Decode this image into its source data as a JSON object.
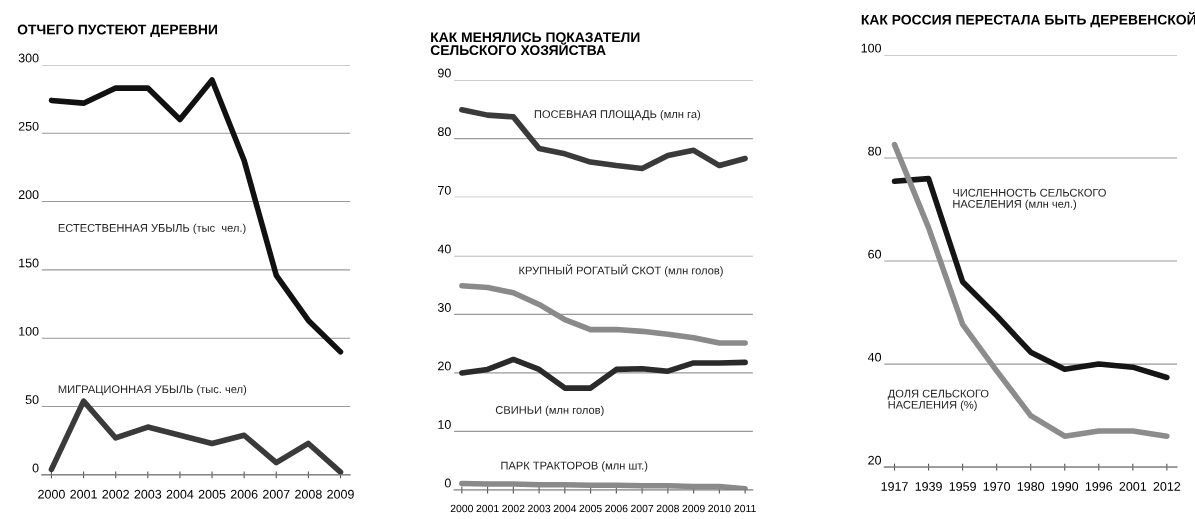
{
  "chart_data": [
    {
      "type": "line",
      "title": "ОТЧЕГО ПУСТЕЮТ ДЕРЕВНИ",
      "categories": [
        "2000",
        "2001",
        "2002",
        "2003",
        "2004",
        "2005",
        "2006",
        "2007",
        "2008",
        "2009"
      ],
      "ylim": [
        0,
        300
      ],
      "yticks": [
        0,
        50,
        100,
        150,
        200,
        250,
        300
      ],
      "grid": "y",
      "marker": "none",
      "line_style": "solid",
      "series": [
        {
          "name": "ЕСТЕСТВЕННАЯ УБЫЛЬ (тыс  чел.)",
          "color": "#111111",
          "values": [
            274,
            272,
            283,
            283,
            260,
            289,
            230,
            146,
            113,
            90
          ]
        },
        {
          "name": "МИГРАЦИОННАЯ УБЫЛЬ (тыс. чел)",
          "color": "#3a3a3a",
          "values": [
            4,
            54,
            27,
            35,
            29,
            23,
            29,
            9,
            23,
            2
          ]
        }
      ]
    },
    {
      "type": "line",
      "title": "КАК МЕНЯЛИСЬ ПОКАЗАТЕЛИ\nСЕЛЬСКОГО ХОЗЯЙСТВА",
      "categories": [
        "2000",
        "2001",
        "2002",
        "2003",
        "2004",
        "2005",
        "2006",
        "2007",
        "2008",
        "2009",
        "2010",
        "2011"
      ],
      "ylim": [
        70,
        90
      ],
      "yticks": [
        70,
        80,
        90
      ],
      "grid": "y",
      "tick_labels": "y",
      "marker": "none",
      "line_style": "solid",
      "series": [
        {
          "name": "ПОСЕВНАЯ ПЛОЩАДЬ (млн га)",
          "color": "#3a3a3a",
          "values": [
            84.9,
            84.0,
            83.7,
            78.3,
            77.4,
            76.0,
            75.4,
            74.9,
            77.1,
            78.0,
            75.4,
            76.6
          ]
        }
      ]
    },
    {
      "type": "line",
      "categories": [
        "2000",
        "2001",
        "2002",
        "2003",
        "2004",
        "2005",
        "2006",
        "2007",
        "2008",
        "2009",
        "2010",
        "2011"
      ],
      "ylim": [
        0,
        40
      ],
      "yticks": [
        0,
        10,
        20,
        30,
        40
      ],
      "grid": "y",
      "marker": "none",
      "line_style": "solid",
      "series": [
        {
          "name": "КРУПНЫЙ РОГАТЫЙ СКОТ (млн голов)",
          "color": "#8a8a8a",
          "values": [
            34.9,
            34.6,
            33.7,
            31.7,
            29.1,
            27.4,
            27.4,
            27.1,
            26.6,
            26.0,
            25.1,
            25.1
          ]
        },
        {
          "name": "СВИНЬИ (млн голов)",
          "color": "#2a2a2a",
          "values": [
            20.0,
            20.6,
            22.3,
            20.6,
            17.4,
            17.4,
            20.6,
            20.7,
            20.3,
            21.7,
            21.7,
            21.8
          ]
        },
        {
          "name": "ПАРК ТРАКТОРОВ (млн шт.)",
          "color": "#8a8a8a",
          "values": [
            1.1,
            1.0,
            1.0,
            0.9,
            0.9,
            0.8,
            0.8,
            0.7,
            0.7,
            0.6,
            0.6,
            0.2
          ]
        }
      ]
    },
    {
      "type": "line",
      "title": "КАК РОССИЯ ПЕРЕСТАЛА БЫТЬ ДЕРЕВЕНСКОЙ",
      "categories": [
        "1917",
        "1939",
        "1959",
        "1970",
        "1980",
        "1990",
        "1996",
        "2001",
        "2012"
      ],
      "ylim": [
        20,
        100
      ],
      "yticks": [
        20,
        40,
        60,
        80,
        100
      ],
      "grid": "y",
      "marker": "none",
      "line_style": "solid",
      "series": [
        {
          "name": "ЧИСЛЕННОСТЬ СЕЛЬСКОГО\nНАСЕЛЕНИЯ (млн чел.)",
          "color": "#151515",
          "values": [
            75.5,
            76,
            56,
            49.4,
            42.3,
            39,
            40,
            39.4,
            37.4
          ]
        },
        {
          "name": "ДОЛЯ СЕЛЬСКОГО\nНАСЕЛЕНИЯ (%)",
          "color": "#8c8c8c",
          "values": [
            82.6,
            66.5,
            47.7,
            38.7,
            30,
            26,
            27,
            27,
            26
          ]
        }
      ]
    }
  ]
}
